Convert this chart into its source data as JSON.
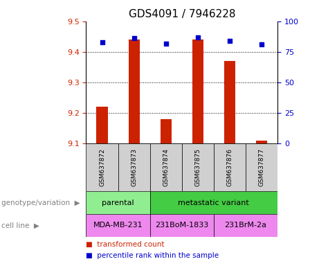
{
  "title": "GDS4091 / 7946228",
  "samples": [
    "GSM637872",
    "GSM637873",
    "GSM637874",
    "GSM637875",
    "GSM637876",
    "GSM637877"
  ],
  "transformed_counts": [
    9.22,
    9.44,
    9.18,
    9.44,
    9.37,
    9.11
  ],
  "percentile_ranks": [
    83,
    86,
    82,
    87,
    84,
    81
  ],
  "ylim_left": [
    9.1,
    9.5
  ],
  "ylim_right": [
    0,
    100
  ],
  "yticks_left": [
    9.1,
    9.2,
    9.3,
    9.4,
    9.5
  ],
  "yticks_right": [
    0,
    25,
    50,
    75,
    100
  ],
  "grid_yticks": [
    9.2,
    9.3,
    9.4
  ],
  "bar_color": "#cc2200",
  "dot_color": "#0000cc",
  "title_fontsize": 11,
  "tick_fontsize": 8,
  "bar_width": 0.35,
  "dot_size": 20,
  "genotype_variation": [
    {
      "label": "parental",
      "start": 0,
      "end": 2,
      "color": "#90ee90"
    },
    {
      "label": "metastatic variant",
      "start": 2,
      "end": 6,
      "color": "#44cc44"
    }
  ],
  "cell_lines": [
    {
      "label": "MDA-MB-231",
      "start": 0,
      "end": 2,
      "color": "#ee88ee"
    },
    {
      "label": "231BoM-1833",
      "start": 2,
      "end": 4,
      "color": "#ee88ee"
    },
    {
      "label": "231BrM-2a",
      "start": 4,
      "end": 6,
      "color": "#ee88ee"
    }
  ],
  "legend_items": [
    {
      "label": "transformed count",
      "color": "#cc2200"
    },
    {
      "label": "percentile rank within the sample",
      "color": "#0000cc"
    }
  ],
  "left_label_color": "#cc2200",
  "right_label_color": "#0000cc",
  "sample_bg_color": "#d0d0d0",
  "left_row_labels": [
    "genotype/variation",
    "cell line"
  ],
  "left_row_label_color": "gray",
  "arrow_char": "▶"
}
